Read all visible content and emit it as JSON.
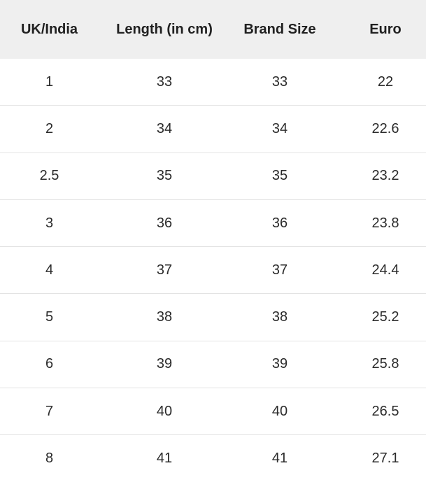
{
  "table": {
    "headers": [
      "UK/India",
      "Length (in cm)",
      "Brand Size",
      "Euro"
    ],
    "rows": [
      [
        "1",
        "33",
        "33",
        "22"
      ],
      [
        "2",
        "34",
        "34",
        "22.6"
      ],
      [
        "2.5",
        "35",
        "35",
        "23.2"
      ],
      [
        "3",
        "36",
        "36",
        "23.8"
      ],
      [
        "4",
        "37",
        "37",
        "24.4"
      ],
      [
        "5",
        "38",
        "38",
        "25.2"
      ],
      [
        "6",
        "39",
        "39",
        "25.8"
      ],
      [
        "7",
        "40",
        "40",
        "26.5"
      ],
      [
        "8",
        "41",
        "41",
        "27.1"
      ]
    ]
  },
  "colors": {
    "header_background": "#efefef",
    "row_divider": "#e3e3e3",
    "text": "#212121"
  }
}
